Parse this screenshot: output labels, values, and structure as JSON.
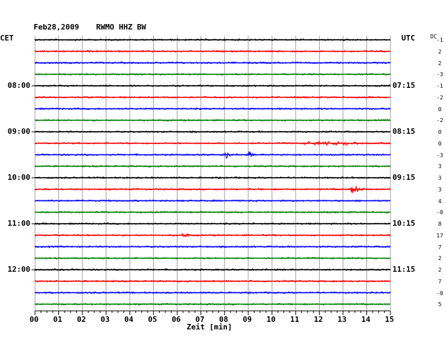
{
  "header": {
    "date": "Feb28,2009",
    "station": "RWMO HHZ BW"
  },
  "left_tz": "CET",
  "right_tz": "UTC",
  "dc_header": "DC",
  "chart_data": {
    "type": "line",
    "title": "Feb28,2009   RWMO HHZ BW",
    "xlabel": "Zeit [min]",
    "xlim": [
      0,
      15
    ],
    "x_ticks": [
      "00",
      "01",
      "02",
      "03",
      "04",
      "05",
      "06",
      "07",
      "08",
      "09",
      "10",
      "11",
      "12",
      "13",
      "14",
      "15"
    ],
    "trace_colors": [
      "#000000",
      "#ff0000",
      "#0000ff",
      "#008000"
    ],
    "traces_count": 24,
    "hour_labels_left": [
      {
        "trace": 4,
        "label": "08:00"
      },
      {
        "trace": 8,
        "label": "09:00"
      },
      {
        "trace": 12,
        "label": "10:00"
      },
      {
        "trace": 16,
        "label": "11:00"
      },
      {
        "trace": 20,
        "label": "12:00"
      }
    ],
    "hour_labels_right": [
      {
        "trace": 4,
        "label": "07:15"
      },
      {
        "trace": 8,
        "label": "08:15"
      },
      {
        "trace": 12,
        "label": "09:15"
      },
      {
        "trace": 16,
        "label": "10:15"
      },
      {
        "trace": 20,
        "label": "11:15"
      }
    ],
    "dc_offsets": [
      "-1",
      "2",
      "2",
      "-3",
      "-1",
      "-2",
      "0",
      "-2",
      "0",
      "0",
      "-3",
      "3",
      "3",
      "3",
      "4",
      "-0",
      "8",
      "17",
      "7",
      "2",
      "2",
      "7",
      "-0",
      "5"
    ],
    "events": [
      {
        "trace": 9,
        "start_min": 11.3,
        "end_min": 13.7,
        "type": "burst sequence"
      },
      {
        "trace": 10,
        "start_min": 8.0,
        "end_min": 8.5,
        "type": "earthquake"
      },
      {
        "trace": 10,
        "start_min": 9.0,
        "end_min": 9.4,
        "type": "earthquake"
      },
      {
        "trace": 13,
        "start_min": 13.3,
        "end_min": 14.4,
        "type": "earthquake"
      },
      {
        "trace": 17,
        "start_min": 6.2,
        "end_min": 6.5,
        "type": "spike"
      }
    ]
  }
}
